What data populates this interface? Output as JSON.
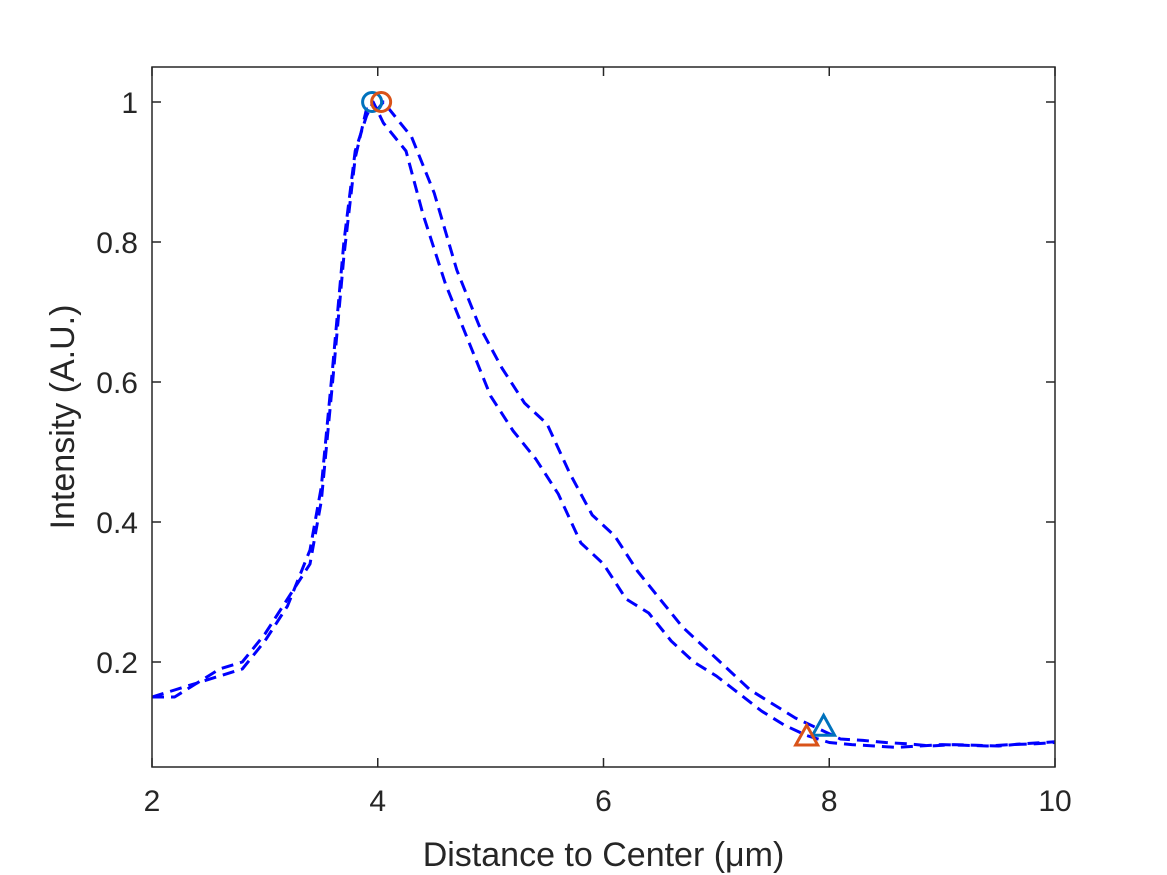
{
  "chart_data": {
    "type": "line",
    "xlabel": "Distance to Center (μm)",
    "ylabel": "Intensity (A.U.)",
    "xlim": [
      2,
      10
    ],
    "ylim": [
      0.05,
      1.05
    ],
    "xticks": [
      2,
      4,
      6,
      8,
      10
    ],
    "xtick_labels": [
      "2",
      "4",
      "6",
      "8",
      "10"
    ],
    "yticks": [
      0.2,
      0.4,
      0.6,
      0.8,
      1.0
    ],
    "ytick_labels": [
      "0.2",
      "0.4",
      "0.6",
      "0.8",
      "1"
    ],
    "grid": false,
    "box": true,
    "line_color": "#0000FF",
    "line_style": "dashed",
    "series": [
      {
        "x": [
          2.0,
          2.2,
          2.4,
          2.6,
          2.8,
          3.0,
          3.2,
          3.4,
          3.5,
          3.6,
          3.7,
          3.8,
          3.9,
          3.96,
          4.05,
          4.15,
          4.25,
          4.4,
          4.6,
          4.8,
          5.0,
          5.2,
          5.4,
          5.6,
          5.8,
          6.0,
          6.2,
          6.4,
          6.6,
          6.8,
          7.0,
          7.2,
          7.4,
          7.6,
          7.8,
          8.0,
          8.2,
          8.4,
          8.6,
          8.8,
          9.0,
          9.2,
          9.4,
          9.6,
          9.8,
          10.0
        ],
        "y": [
          0.15,
          0.15,
          0.17,
          0.18,
          0.19,
          0.23,
          0.28,
          0.36,
          0.45,
          0.62,
          0.8,
          0.93,
          0.98,
          1.0,
          0.97,
          0.95,
          0.93,
          0.84,
          0.74,
          0.66,
          0.58,
          0.53,
          0.49,
          0.44,
          0.37,
          0.34,
          0.29,
          0.27,
          0.23,
          0.2,
          0.18,
          0.155,
          0.13,
          0.11,
          0.095,
          0.085,
          0.082,
          0.08,
          0.078,
          0.08,
          0.082,
          0.081,
          0.08,
          0.082,
          0.083,
          0.085
        ]
      },
      {
        "x": [
          2.0,
          2.2,
          2.4,
          2.6,
          2.8,
          3.0,
          3.2,
          3.4,
          3.5,
          3.6,
          3.7,
          3.8,
          3.9,
          4.0,
          4.05,
          4.15,
          4.3,
          4.5,
          4.7,
          4.9,
          5.1,
          5.3,
          5.5,
          5.7,
          5.9,
          6.1,
          6.3,
          6.5,
          6.7,
          6.9,
          7.1,
          7.3,
          7.5,
          7.7,
          7.9,
          8.1,
          8.3,
          8.5,
          8.7,
          8.9,
          9.1,
          9.3,
          9.5,
          9.7,
          10.0
        ],
        "y": [
          0.15,
          0.16,
          0.17,
          0.19,
          0.2,
          0.24,
          0.29,
          0.34,
          0.43,
          0.6,
          0.78,
          0.92,
          0.99,
          0.99,
          1.0,
          0.98,
          0.95,
          0.87,
          0.76,
          0.68,
          0.62,
          0.57,
          0.54,
          0.47,
          0.41,
          0.38,
          0.33,
          0.29,
          0.25,
          0.22,
          0.19,
          0.16,
          0.14,
          0.12,
          0.105,
          0.09,
          0.088,
          0.085,
          0.083,
          0.08,
          0.082,
          0.081,
          0.08,
          0.083,
          0.086
        ]
      }
    ],
    "markers": [
      {
        "shape": "circle",
        "x": 3.95,
        "y": 1.0,
        "color": "#0072BD"
      },
      {
        "shape": "circle",
        "x": 4.03,
        "y": 1.0,
        "color": "#D95319"
      },
      {
        "shape": "triangle",
        "x": 7.95,
        "y": 0.108,
        "color": "#0072BD"
      },
      {
        "shape": "triangle",
        "x": 7.8,
        "y": 0.094,
        "color": "#D95319"
      }
    ]
  }
}
